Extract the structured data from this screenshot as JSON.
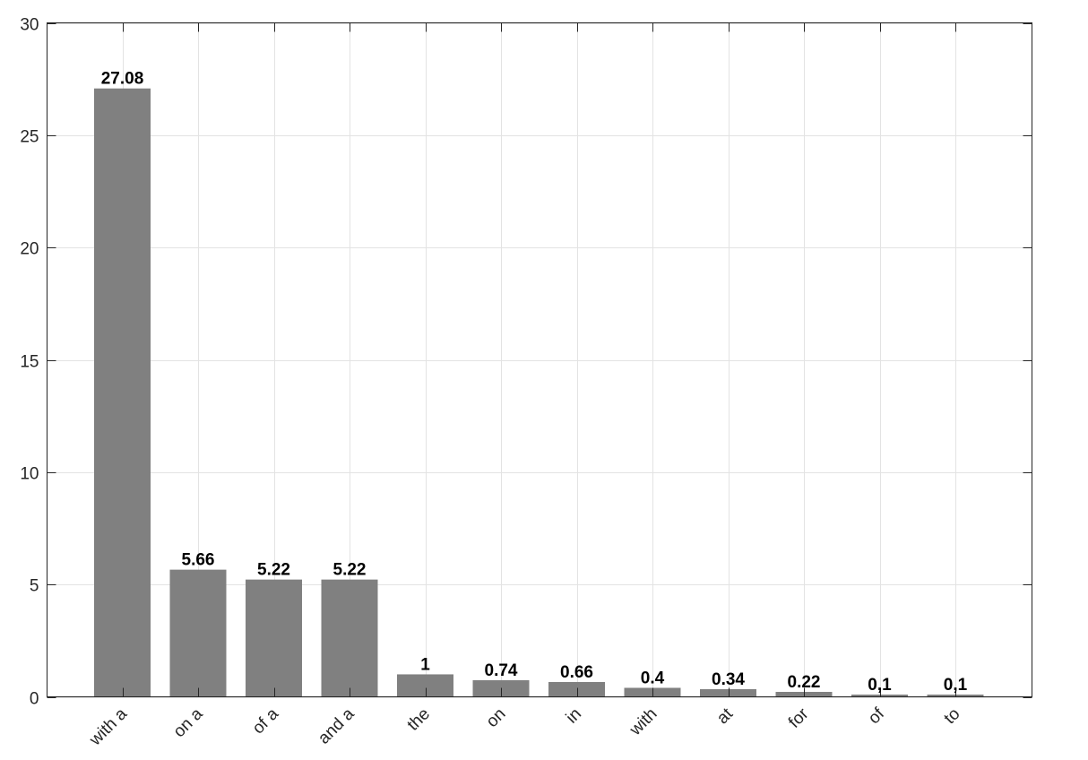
{
  "chart_data": {
    "type": "bar",
    "categories": [
      "with a",
      "on a",
      "of a",
      "and a",
      "the",
      "on",
      "in",
      "with",
      "at",
      "for",
      "of",
      "to"
    ],
    "values": [
      27.08,
      5.66,
      5.22,
      5.22,
      1,
      0.74,
      0.66,
      0.4,
      0.34,
      0.22,
      0.1,
      0.1
    ],
    "data_labels": [
      "27.08",
      "5.66",
      "5.22",
      "5.22",
      "1",
      "0.74",
      "0.66",
      "0.4",
      "0.34",
      "0.22",
      "0,1",
      "0,1"
    ],
    "ylim": [
      0,
      30
    ],
    "yticks": [
      0,
      5,
      10,
      15,
      20,
      25,
      30
    ],
    "ytick_labels": [
      "0",
      "5",
      "10",
      "15",
      "20",
      "25",
      "30"
    ],
    "grid": true,
    "bar_color": "#808080",
    "grid_color": "#e3e3e3",
    "axis_color": "#262626",
    "title": "",
    "xlabel": "",
    "ylabel": ""
  }
}
